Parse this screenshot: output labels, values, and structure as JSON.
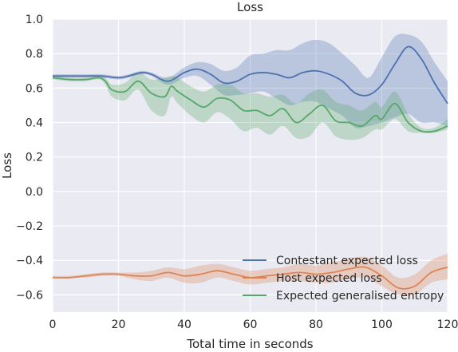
{
  "chart_data": {
    "type": "line",
    "title": "Loss",
    "xlabel": "Total time in seconds",
    "ylabel": "Loss",
    "xlim": [
      0,
      120
    ],
    "ylim": [
      -0.7,
      1.0
    ],
    "xticks": [
      0,
      20,
      40,
      60,
      80,
      100,
      120
    ],
    "xtick_labels": [
      "0",
      "20",
      "40",
      "60",
      "80",
      "100",
      "120"
    ],
    "yticks": [
      -0.6,
      -0.4,
      -0.2,
      0.0,
      0.2,
      0.4,
      0.6,
      0.8,
      1.0
    ],
    "ytick_labels": [
      "−0.6",
      "−0.4",
      "−0.2",
      "0.0",
      "0.2",
      "0.4",
      "0.6",
      "0.8",
      "1.0"
    ],
    "grid": true,
    "legend_position": "lower right",
    "series": [
      {
        "name": "Contestant expected loss",
        "color": "#4c72b0",
        "x": [
          0,
          5,
          10,
          15,
          20,
          23,
          27,
          30,
          35,
          40,
          44,
          48,
          52,
          56,
          60,
          64,
          68,
          72,
          76,
          80,
          84,
          88,
          92,
          96,
          100,
          104,
          108,
          112,
          116,
          120
        ],
        "y": [
          0.67,
          0.67,
          0.67,
          0.67,
          0.66,
          0.67,
          0.69,
          0.68,
          0.64,
          0.69,
          0.71,
          0.68,
          0.63,
          0.64,
          0.68,
          0.69,
          0.68,
          0.66,
          0.69,
          0.7,
          0.68,
          0.64,
          0.57,
          0.56,
          0.62,
          0.74,
          0.84,
          0.77,
          0.63,
          0.51
        ],
        "lower": [
          0.66,
          0.66,
          0.66,
          0.66,
          0.65,
          0.66,
          0.68,
          0.67,
          0.62,
          0.66,
          0.67,
          0.62,
          0.56,
          0.56,
          0.57,
          0.58,
          0.54,
          0.5,
          0.52,
          0.52,
          0.48,
          0.44,
          0.37,
          0.38,
          0.4,
          0.43,
          0.45,
          0.4,
          0.4,
          0.38
        ],
        "upper": [
          0.68,
          0.68,
          0.68,
          0.68,
          0.67,
          0.68,
          0.7,
          0.69,
          0.66,
          0.72,
          0.75,
          0.74,
          0.7,
          0.72,
          0.79,
          0.8,
          0.82,
          0.82,
          0.86,
          0.88,
          0.86,
          0.8,
          0.73,
          0.66,
          0.78,
          0.9,
          0.91,
          0.87,
          0.75,
          0.64
        ]
      },
      {
        "name": "Host expected loss",
        "color": "#dd8452",
        "x": [
          0,
          5,
          10,
          15,
          20,
          25,
          30,
          35,
          40,
          45,
          50,
          55,
          60,
          65,
          70,
          75,
          80,
          85,
          90,
          95,
          100,
          105,
          110,
          115,
          120
        ],
        "y": [
          -0.5,
          -0.5,
          -0.49,
          -0.48,
          -0.48,
          -0.49,
          -0.49,
          -0.47,
          -0.49,
          -0.48,
          -0.46,
          -0.48,
          -0.5,
          -0.49,
          -0.48,
          -0.47,
          -0.48,
          -0.47,
          -0.45,
          -0.44,
          -0.49,
          -0.56,
          -0.55,
          -0.47,
          -0.44
        ],
        "lower": [
          -0.5,
          -0.5,
          -0.5,
          -0.49,
          -0.49,
          -0.51,
          -0.52,
          -0.5,
          -0.53,
          -0.53,
          -0.5,
          -0.52,
          -0.54,
          -0.53,
          -0.52,
          -0.52,
          -0.53,
          -0.53,
          -0.51,
          -0.5,
          -0.55,
          -0.6,
          -0.6,
          -0.53,
          -0.51
        ],
        "upper": [
          -0.49,
          -0.49,
          -0.48,
          -0.47,
          -0.47,
          -0.47,
          -0.46,
          -0.44,
          -0.45,
          -0.43,
          -0.42,
          -0.44,
          -0.46,
          -0.45,
          -0.44,
          -0.42,
          -0.43,
          -0.41,
          -0.39,
          -0.38,
          -0.43,
          -0.5,
          -0.48,
          -0.4,
          -0.36
        ]
      },
      {
        "name": "Expected generalised entropy",
        "color": "#55a868",
        "x": [
          0,
          5,
          10,
          14,
          16,
          18,
          22,
          26,
          30,
          34,
          36,
          38,
          42,
          46,
          50,
          54,
          58,
          62,
          66,
          70,
          74,
          78,
          82,
          86,
          90,
          94,
          98,
          100,
          104,
          108,
          112,
          116,
          120
        ],
        "y": [
          0.66,
          0.65,
          0.65,
          0.66,
          0.64,
          0.59,
          0.58,
          0.64,
          0.57,
          0.55,
          0.61,
          0.58,
          0.53,
          0.49,
          0.54,
          0.53,
          0.47,
          0.47,
          0.44,
          0.48,
          0.4,
          0.45,
          0.5,
          0.41,
          0.4,
          0.38,
          0.44,
          0.42,
          0.51,
          0.4,
          0.35,
          0.35,
          0.38
        ],
        "lower": [
          0.65,
          0.64,
          0.64,
          0.65,
          0.62,
          0.55,
          0.53,
          0.59,
          0.47,
          0.44,
          0.55,
          0.51,
          0.44,
          0.4,
          0.46,
          0.42,
          0.35,
          0.37,
          0.33,
          0.38,
          0.31,
          0.32,
          0.4,
          0.32,
          0.3,
          0.31,
          0.36,
          0.36,
          0.42,
          0.35,
          0.34,
          0.34,
          0.36
        ],
        "upper": [
          0.67,
          0.66,
          0.66,
          0.67,
          0.66,
          0.62,
          0.63,
          0.69,
          0.65,
          0.66,
          0.67,
          0.66,
          0.61,
          0.58,
          0.62,
          0.62,
          0.57,
          0.57,
          0.55,
          0.56,
          0.51,
          0.57,
          0.59,
          0.52,
          0.5,
          0.47,
          0.52,
          0.49,
          0.58,
          0.45,
          0.37,
          0.37,
          0.42
        ]
      }
    ]
  }
}
